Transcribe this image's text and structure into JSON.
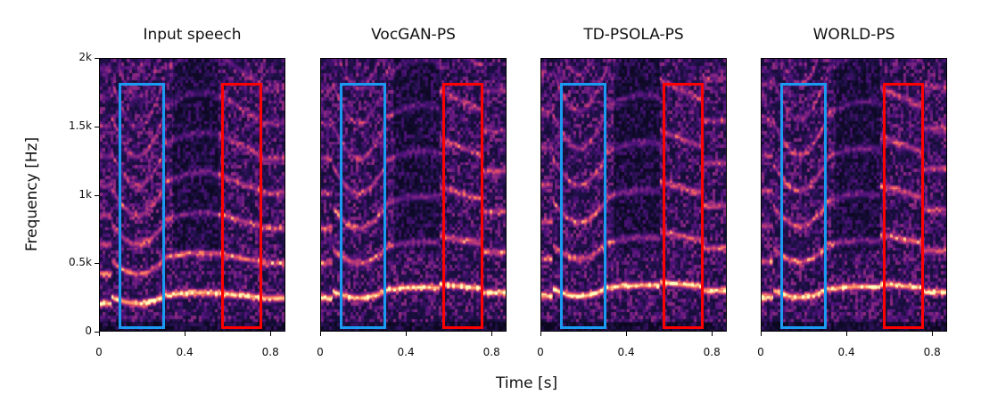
{
  "chart_data": {
    "type": "heatmap",
    "xlabel": "Time [s]",
    "ylabel": "Frequency [Hz]",
    "xlim": [
      0,
      0.87
    ],
    "ylim": [
      0,
      2000
    ],
    "x_ticks": [
      {
        "value": 0,
        "label": "0"
      },
      {
        "value": 0.4,
        "label": "0.4"
      },
      {
        "value": 0.8,
        "label": "0.8"
      }
    ],
    "y_ticks": [
      {
        "value": 0,
        "label": "0"
      },
      {
        "value": 500,
        "label": "0.5k"
      },
      {
        "value": 1000,
        "label": "1k"
      },
      {
        "value": 1500,
        "label": "1.5k"
      },
      {
        "value": 2000,
        "label": "2k"
      }
    ],
    "colormap": "magma",
    "highlight_boxes": [
      {
        "color": "#1a9af0",
        "t_start": 0.09,
        "t_end": 0.31,
        "f_low": 20,
        "f_high": 1820
      },
      {
        "color": "#ff0000",
        "t_start": 0.57,
        "t_end": 0.76,
        "f_low": 20,
        "f_high": 1820
      }
    ],
    "panels": [
      {
        "title": "Input speech",
        "f0_offset": 0,
        "seed": 11
      },
      {
        "title": "VocGAN-PS",
        "f0_offset": 40,
        "seed": 23
      },
      {
        "title": "TD-PSOLA-PS",
        "f0_offset": 55,
        "seed": 37
      },
      {
        "title": "WORLD-PS",
        "f0_offset": 45,
        "seed": 51
      }
    ]
  }
}
